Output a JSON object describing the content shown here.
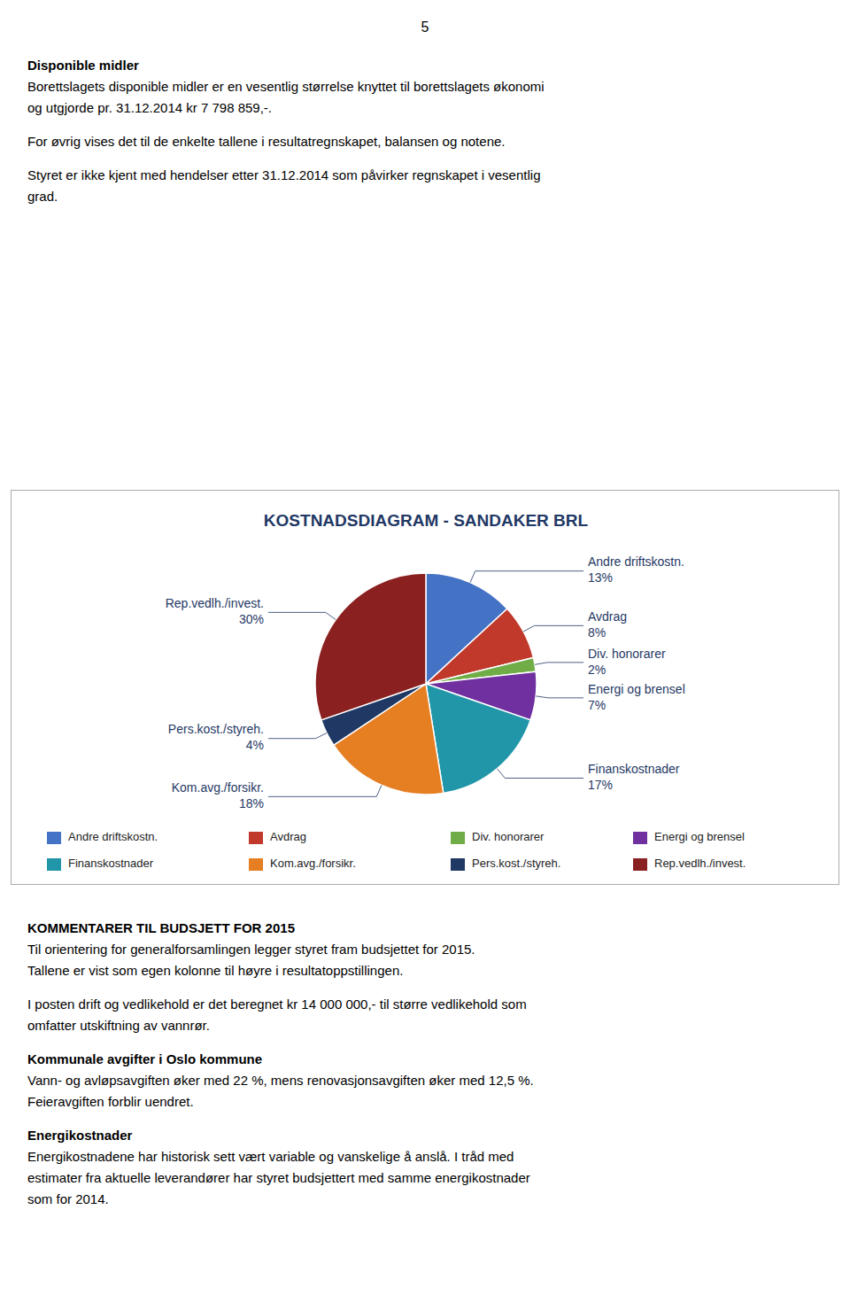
{
  "page_number": "5",
  "top_texts": [
    {
      "text": "Disponible midler",
      "bold": true
    },
    {
      "text": "Borettslagets disponible midler er en vesentlig størrelse knyttet til borettslagets økonomi\nog utgjorde pr. 31.12.2014 kr 7 798 859,-.",
      "bold": false
    },
    {
      "text": "For øvrig vises det til de enkelte tallene i resultatregnskapet, balansen og notene.",
      "bold": false
    },
    {
      "text": "Styret er ikke kjent med hendelser etter 31.12.2014 som påvirker regnskapet i vesentlig\ngrad.",
      "bold": false
    }
  ],
  "bottom_texts": [
    {
      "text": "KOMMENTARER TIL BUDSJETT FOR 2015",
      "bold": true
    },
    {
      "text": "Til orientering for generalforsamlingen legger styret fram budsjettet for 2015.\nTallene er vist som egen kolonne til høyre i resultatoppstillingen.",
      "bold": false
    },
    {
      "text": "I posten drift og vedlikehold er det beregnet kr 14 000 000,- til større vedlikehold som\nomfatter utskiftning av vannrør.",
      "bold": false
    },
    {
      "text": "Kommunale avgifter i Oslo kommune",
      "bold": true
    },
    {
      "text": "Vann- og avløpsavgiften øker med 22 %, mens renovasjonsavgiften øker med 12,5 %.\nFeieravgiften forblir uendret.",
      "bold": false
    },
    {
      "text": "Energikostnader",
      "bold": true
    },
    {
      "text": "Energikostnadene har historisk sett vært variable og vanskelige å anslå. I tråd med\nestimater fra aktuelle leverandører har styret budsjettert med samme energikostnader\nsom for 2014.",
      "bold": false
    }
  ],
  "chart_data": {
    "type": "pie",
    "title": "KOSTNADSDIAGRAM - SANDAKER BRL",
    "categories": [
      "Andre driftskostn.",
      "Avdrag",
      "Div. honorarer",
      "Energi og brensel",
      "Finanskostnader",
      "Kom.avg./forsikr.",
      "Pers.kost./styreh.",
      "Rep.vedlh./invest."
    ],
    "values": [
      13,
      8,
      2,
      7,
      17,
      18,
      4,
      30
    ],
    "value_labels": [
      "13%",
      "8%",
      "2%",
      "7%",
      "17%",
      "18%",
      "4%",
      "30%"
    ],
    "colors": [
      "#4472C4",
      "#C0392B",
      "#70AD47",
      "#7030A0",
      "#2196A8",
      "#E67E22",
      "#1F3864",
      "#8B2020"
    ],
    "data_labels": true,
    "legend": "bottom"
  }
}
